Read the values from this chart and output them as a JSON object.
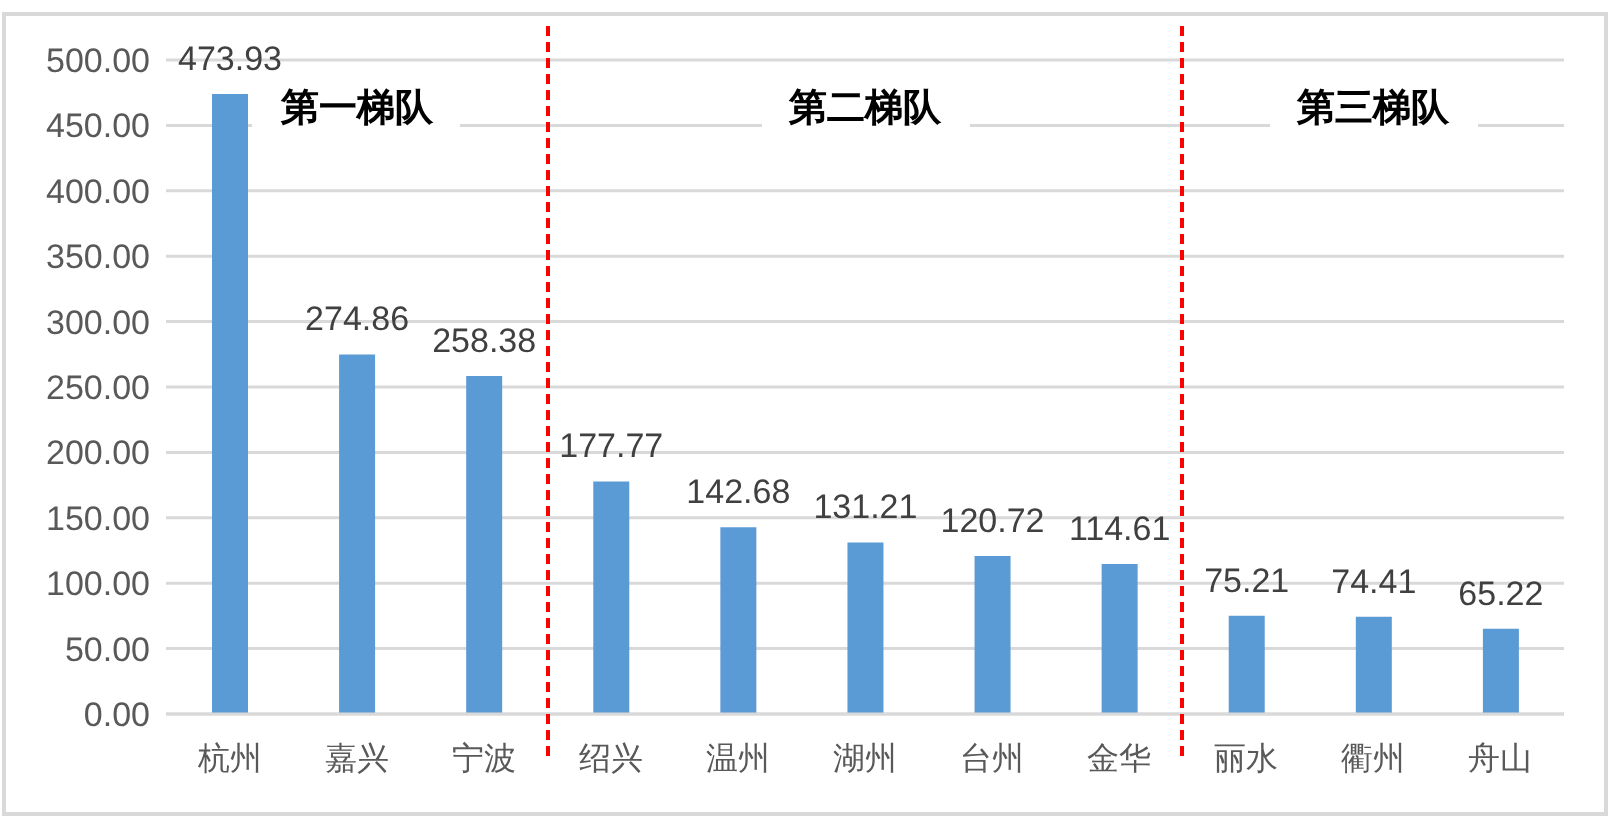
{
  "chart_data": {
    "type": "bar",
    "categories": [
      "杭州",
      "嘉兴",
      "宁波",
      "绍兴",
      "温州",
      "湖州",
      "台州",
      "金华",
      "丽水",
      "衢州",
      "舟山"
    ],
    "values": [
      473.93,
      274.86,
      258.38,
      177.77,
      142.68,
      131.21,
      120.72,
      114.61,
      75.21,
      74.41,
      65.22
    ],
    "color": "#5b9bd5",
    "ylim": [
      0,
      500
    ],
    "yticks": [
      {
        "value": 0,
        "label": "0.00"
      },
      {
        "value": 50,
        "label": "50.00"
      },
      {
        "value": 100,
        "label": "100.00"
      },
      {
        "value": 150,
        "label": "150.00"
      },
      {
        "value": 200,
        "label": "200.00"
      },
      {
        "value": 250,
        "label": "250.00"
      },
      {
        "value": 300,
        "label": "300.00"
      },
      {
        "value": 350,
        "label": "350.00"
      },
      {
        "value": 400,
        "label": "400.00"
      },
      {
        "value": 450,
        "label": "450.00"
      },
      {
        "value": 500,
        "label": "500.00"
      }
    ],
    "grid": "y",
    "data_labels": true,
    "annotations": [
      "第一梯队",
      "第二梯队",
      "第三梯队"
    ]
  }
}
